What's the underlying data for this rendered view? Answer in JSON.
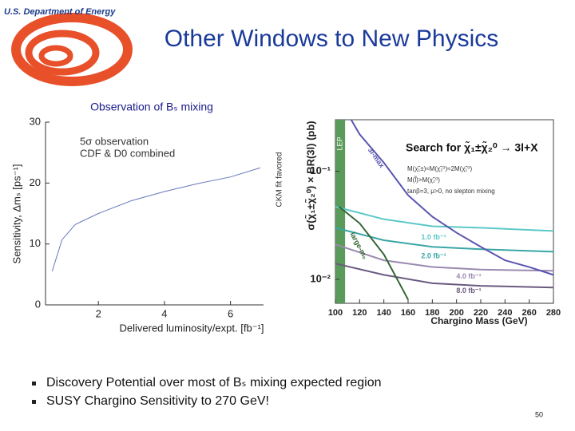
{
  "header": {
    "agency": "U.S. Department of Energy",
    "title": "Other Windows to New Physics"
  },
  "chart_data": [
    {
      "type": "line",
      "title": "Observation of Bₛ mixing",
      "x_label": "Delivered luminosity/expt. [fb⁻¹]",
      "y_label": "Sensitivity, Δmₛ [ps⁻¹]",
      "annotations": [
        "5σ observation",
        "CDF & D0 combined",
        "CKM fit favored"
      ],
      "xlim": [
        0.4,
        7.0
      ],
      "ylim": [
        0,
        30
      ],
      "xticks": [
        2,
        4,
        6
      ],
      "yticks": [
        0,
        10,
        20,
        30
      ],
      "log_y": false,
      "series": [
        {
          "name": null,
          "color": "#6677bb",
          "x": [
            0.6,
            0.9,
            1.3,
            2,
            3,
            4,
            5,
            6,
            6.9
          ],
          "values": [
            5.5,
            10.7,
            13.2,
            15,
            17.1,
            18.6,
            19.9,
            21,
            22.5
          ]
        }
      ]
    },
    {
      "type": "line",
      "title": "Search for χ̃₁±χ̃₂⁰ → 3l+X",
      "x_label": "Chargino Mass (GeV)",
      "y_label": "σ(χ̃₁±χ̃₂⁰) × BR(3l) (pb)",
      "annotations": [
        "M(χ̃₁±)≈M(χ̃₂⁰)≈2M(χ̃₁⁰)",
        "M(l̃)>M(χ̃₂⁰)",
        "tanβ=3, μ>0, no slepton mixing",
        "LEP"
      ],
      "lep_band": [
        100,
        108
      ],
      "xlim": [
        100,
        280
      ],
      "ylim": [
        0.006,
        0.3
      ],
      "xticks": [
        100,
        120,
        140,
        160,
        180,
        200,
        220,
        240,
        260,
        280
      ],
      "yticks": [
        {
          "value": 0.1,
          "label": "10⁻¹"
        },
        {
          "value": 0.01,
          "label": "10⁻²"
        }
      ],
      "log_y": true,
      "series": [
        {
          "name": "1.0 fb⁻¹",
          "color": "#5cc8c8",
          "x": [
            100,
            140,
            180,
            220,
            280
          ],
          "values": [
            0.047,
            0.036,
            0.031,
            0.03,
            0.028
          ]
        },
        {
          "name": "2.0 fb⁻¹",
          "color": "#3aa6a6",
          "x": [
            100,
            140,
            180,
            220,
            280
          ],
          "values": [
            0.03,
            0.023,
            0.02,
            0.019,
            0.018
          ]
        },
        {
          "name": "4.0 fb⁻¹",
          "color": "#9a8ab0",
          "x": [
            100,
            140,
            180,
            220,
            280
          ],
          "values": [
            0.021,
            0.015,
            0.013,
            0.0123,
            0.012
          ]
        },
        {
          "name": "8.0 fb⁻¹",
          "color": "#6a5a80",
          "x": [
            100,
            140,
            180,
            220,
            280
          ],
          "values": [
            0.014,
            0.011,
            0.0092,
            0.0087,
            0.0084
          ]
        },
        {
          "name": "3l-max",
          "color": "#5a55b0",
          "x": [
            113,
            120,
            140,
            160,
            180,
            200,
            220,
            240,
            260,
            280
          ],
          "values": [
            0.3,
            0.22,
            0.12,
            0.06,
            0.038,
            0.027,
            0.02,
            0.015,
            0.013,
            0.011
          ]
        },
        {
          "name": "large-m₀",
          "color": "#336633",
          "x": [
            103,
            120,
            140,
            160
          ],
          "values": [
            0.047,
            0.033,
            0.017,
            0.0065
          ]
        }
      ]
    }
  ],
  "bullets": [
    "Discovery Potential over most of Bₛ mixing expected region",
    "SUSY Chargino Sensitivity to 270 GeV!"
  ],
  "page_number": "50"
}
